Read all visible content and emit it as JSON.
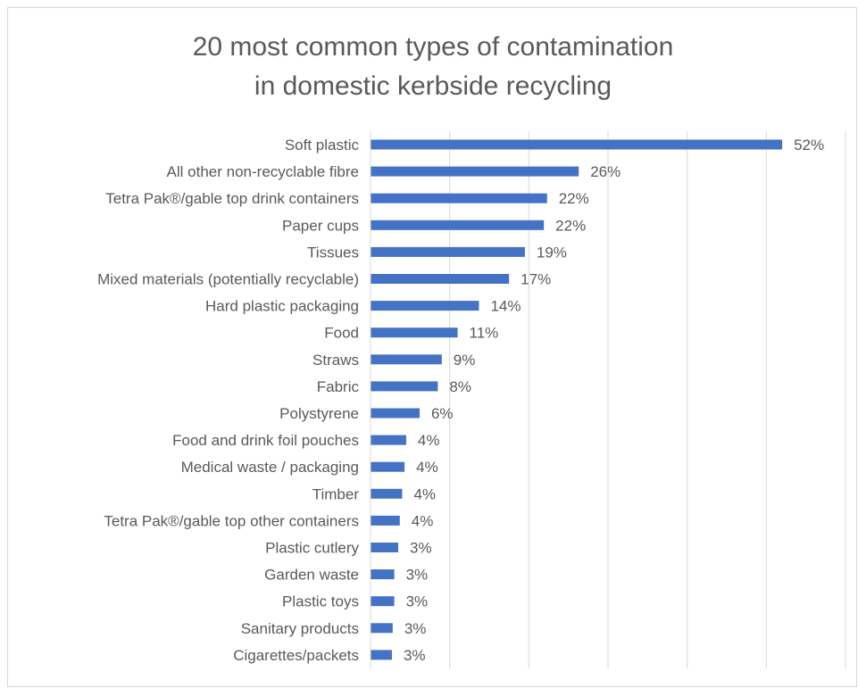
{
  "chart_data": {
    "type": "bar",
    "orientation": "horizontal",
    "title": [
      "20 most common types of contamination",
      "in domestic kerbside recycling"
    ],
    "xlabel": "",
    "ylabel": "",
    "xlim": [
      0,
      60
    ],
    "grid": true,
    "legend": "none",
    "bar_color": "#4472c4",
    "value_suffix": "%",
    "categories": [
      "Soft plastic",
      "All other non-recyclable fibre",
      "Tetra Pak®/gable top drink containers",
      "Paper cups",
      "Tissues",
      "Mixed materials (potentially recyclable)",
      "Hard plastic packaging",
      "Food",
      "Straws",
      "Fabric",
      "Polystyrene",
      "Food and drink foil pouches",
      "Medical waste / packaging",
      "Timber",
      "Tetra Pak®/gable top other containers",
      "Plastic cutlery",
      "Garden waste",
      "Plastic toys",
      "Sanitary products",
      "Cigarettes/packets"
    ],
    "values": [
      52,
      26,
      22,
      22,
      19,
      17,
      14,
      11,
      9,
      8,
      6,
      4,
      4,
      4,
      4,
      3,
      3,
      3,
      3,
      3
    ],
    "bar_values": [
      52,
      26.3,
      22.3,
      21.9,
      19.5,
      17.5,
      13.7,
      11,
      9,
      8.5,
      6.2,
      4.5,
      4.3,
      4,
      3.7,
      3.5,
      3,
      3,
      2.8,
      2.7
    ],
    "data_labels": [
      "52%",
      "26%",
      "22%",
      "22%",
      "19%",
      "17%",
      "14%",
      "11%",
      "9%",
      "8%",
      "6%",
      "4%",
      "4%",
      "4%",
      "4%",
      "3%",
      "3%",
      "3%",
      "3%",
      "3%"
    ]
  }
}
